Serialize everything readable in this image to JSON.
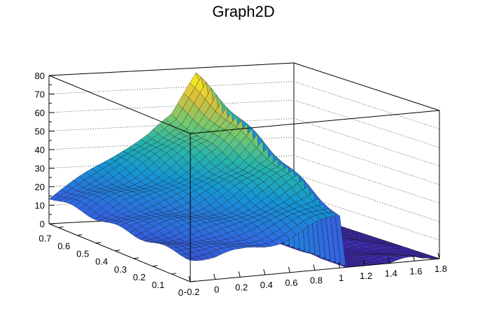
{
  "chart_data": {
    "type": "surface",
    "title": "Graph2D",
    "xlabel": "",
    "ylabel": "",
    "zlabel": "",
    "x_ticks": [
      "-0.2",
      "0",
      "0.2",
      "0.4",
      "0.6",
      "0.8",
      "1",
      "1.2",
      "1.4",
      "1.6",
      "1.8"
    ],
    "y_ticks": [
      "0",
      "0.1",
      "0.2",
      "0.3",
      "0.4",
      "0.5",
      "0.6",
      "0.7"
    ],
    "z_ticks": [
      "0",
      "10",
      "20",
      "30",
      "40",
      "50",
      "60",
      "70",
      "80"
    ],
    "xlim": [
      -0.2,
      1.8
    ],
    "ylim": [
      0,
      0.75
    ],
    "zlim": [
      0,
      80
    ],
    "grid": true,
    "colormap": "viridis-like",
    "surface_profile": {
      "x": [
        -0.2,
        0.0,
        0.2,
        0.4,
        0.6,
        0.8,
        1.0,
        1.2,
        1.4,
        1.6,
        1.8
      ],
      "z_at_y_min": [
        14,
        12,
        13,
        16,
        20,
        24,
        27,
        0,
        0,
        0,
        0
      ],
      "z_at_y_max": [
        14,
        22,
        30,
        38,
        45,
        55,
        78,
        40,
        0,
        0,
        0
      ]
    }
  }
}
